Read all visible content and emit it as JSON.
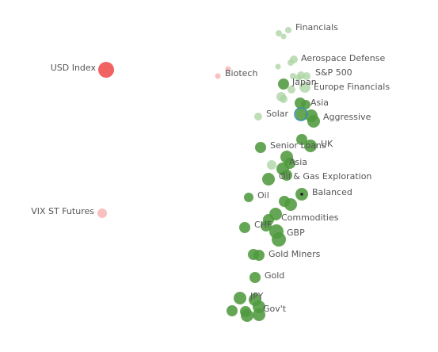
{
  "chart_data": {
    "type": "scatter",
    "title": "",
    "xlabel": "",
    "ylabel": "",
    "grid": false,
    "colors": {
      "positive_dark": "#4e9a3e",
      "positive_light": "#a9d3a0",
      "negative_dark": "#f05a5a",
      "negative_light": "#f8b5b5",
      "ring": "#3f8fb3",
      "marker_dot": "#1a1a1a"
    },
    "labels": [
      {
        "text": "Financials"
      },
      {
        "text": "USD Index"
      },
      {
        "text": "Aerospace Defense"
      },
      {
        "text": "S&P 500"
      },
      {
        "text": "Biotech"
      },
      {
        "text": "Japan"
      },
      {
        "text": "Europe Financials"
      },
      {
        "text": "Asia"
      },
      {
        "text": "Solar"
      },
      {
        "text": "Aggressive"
      },
      {
        "text": "UK"
      },
      {
        "text": "Senior Loans"
      },
      {
        "text": "Asia"
      },
      {
        "text": "Oil & Gas Exploration"
      },
      {
        "text": "Balanced"
      },
      {
        "text": "Oil"
      },
      {
        "text": "VIX ST Futures"
      },
      {
        "text": "Commodities"
      },
      {
        "text": "CHF"
      },
      {
        "text": "GBP"
      },
      {
        "text": "Gold Miners"
      },
      {
        "text": "Gold"
      },
      {
        "text": "JPY"
      },
      {
        "text": "Gov't"
      }
    ]
  }
}
